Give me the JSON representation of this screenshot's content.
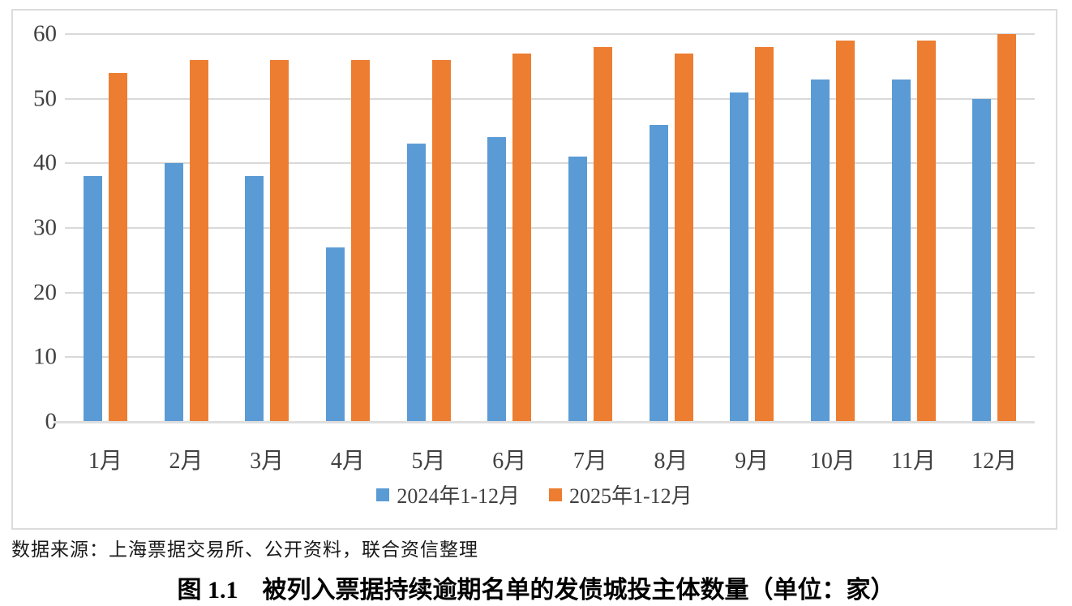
{
  "chart_data": {
    "type": "bar",
    "categories": [
      "1月",
      "2月",
      "3月",
      "4月",
      "5月",
      "6月",
      "7月",
      "8月",
      "9月",
      "10月",
      "11月",
      "12月"
    ],
    "series": [
      {
        "name": "2024年1-12月",
        "color": "#5B9BD5",
        "values": [
          38,
          40,
          38,
          27,
          43,
          44,
          41,
          46,
          51,
          53,
          53,
          50
        ]
      },
      {
        "name": "2025年1-12月",
        "color": "#ED7D31",
        "values": [
          54,
          56,
          56,
          56,
          56,
          57,
          58,
          57,
          58,
          59,
          59,
          60
        ]
      }
    ],
    "title": "",
    "xlabel": "",
    "ylabel": "",
    "ylim": [
      0,
      60
    ],
    "ytick_step": 10,
    "grid": true,
    "legend_position": "bottom"
  },
  "caption": {
    "source": "数据来源：上海票据交易所、公开资料，联合资信整理",
    "title": "图 1.1　被列入票据持续逾期名单的发债城投主体数量（单位：家）"
  },
  "colors": {
    "gridline": "#D9D9D9",
    "axis_line": "#DEDEDE",
    "tick_text": "#404040",
    "chart_border": "#DCDCDC",
    "series_blue": "#5B9BD5",
    "series_orange": "#ED7D31"
  }
}
